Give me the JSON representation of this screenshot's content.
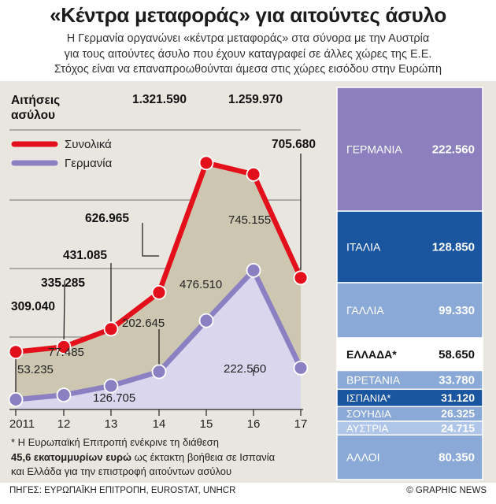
{
  "header": {
    "title": "«Κέντρα μεταφοράς» για αιτούντες άσυλο",
    "subtitle_lines": [
      "Η Γερμανία οργανώνει «κέντρα μεταφοράς» στα σύνορα με την Αυστρία",
      "για τους αιτούντες άσυλο που έχουν καταγραφεί σε άλλες χώρες της Ε.Ε.",
      "Στόχος είναι να επαναπροωθούνται άμεσα στις χώρες εισόδου στην Ευρώπη"
    ]
  },
  "chart_data": [
    {
      "type": "line",
      "ylabel_lines": [
        "Αιτήσεις",
        "ασύλου"
      ],
      "categories": [
        "2011",
        "12",
        "13",
        "14",
        "15",
        "16",
        "17"
      ],
      "series": [
        {
          "name": "Συνολικά",
          "color": "#e3101b",
          "values": [
            309040,
            335285,
            431085,
            626965,
            1321590,
            1259970,
            705680
          ],
          "labels": [
            "309.040",
            "335.285",
            "431.085",
            "626.965",
            "1.321.590",
            "1.259.970",
            "705.680"
          ]
        },
        {
          "name": "Γερμανία",
          "color": "#8a80c2",
          "values": [
            53235,
            77485,
            126705,
            202645,
            476510,
            745155,
            222560
          ],
          "labels": [
            "53.235",
            "77.485",
            "126.705",
            "202.645",
            "476.510",
            "745.155",
            "222.560"
          ]
        }
      ]
    },
    {
      "type": "bar",
      "stacked": true,
      "categories": [
        "ΓΕΡΜΑΝΙΑ",
        "ΙΤΑΛΙΑ",
        "ΓΑΛΛΙΑ",
        "ΕΛΛΑΔΑ*",
        "ΒΡΕΤΑΝΙΑ",
        "ΙΣΠΑΝΙΑ*",
        "ΣΟΥΗΔΙΑ",
        "ΑΥΣΤΡΙΑ",
        "ΑΛΛΟΙ"
      ],
      "values": [
        222560,
        128850,
        99330,
        58650,
        33780,
        31120,
        26325,
        24715,
        80350
      ],
      "labels": [
        "222.560",
        "128.850",
        "99.330",
        "58.650",
        "33.780",
        "31.120",
        "26.325",
        "24.715",
        "80.350"
      ],
      "colors": [
        "#8b7fbd",
        "#1a55a0",
        "#8aa9d6",
        "#ffffff",
        "#8aa9d6",
        "#1a55a0",
        "#8aa9d6",
        "#b0c6e8",
        "#8aa9d6"
      ]
    }
  ],
  "footnote": {
    "line1": "* Η Ευρωπαϊκή Επιτροπή ενέκρινε τη διάθεση",
    "bold": "45,6 εκατομμυρίων ευρώ",
    "line2_rest": " ως έκτακτη βοήθεια σε Ισπανία",
    "line3": "και Ελλάδα για την επιστροφή αιτούντων ασύλου"
  },
  "footer": {
    "sources": "ΠΗΓΕΣ: ΕΥΡΩΠΑΪΚΗ ΕΠΙΤΡΟΠΗ, EUROSTAT, UNHCR",
    "credit": "© GRAPHIC NEWS"
  }
}
